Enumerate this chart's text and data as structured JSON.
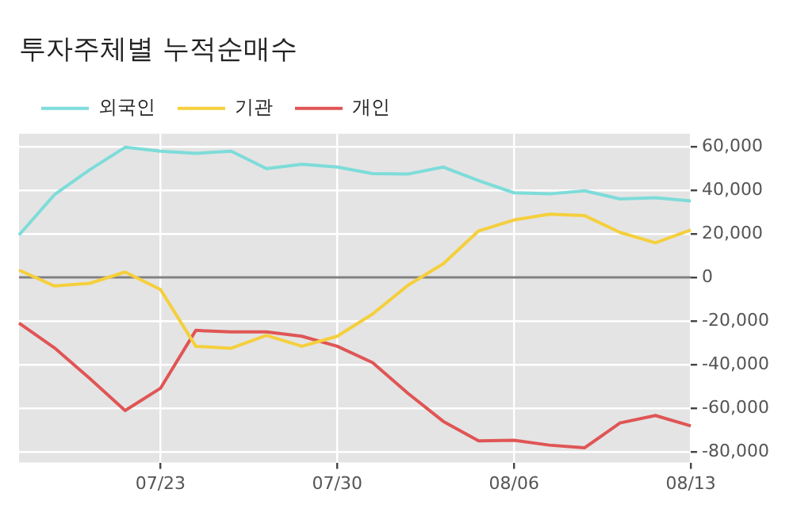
{
  "chart_data": {
    "type": "line",
    "title": "투자주체별 누적순매수",
    "categories": [
      null,
      null,
      null,
      null,
      "07/23",
      null,
      null,
      null,
      null,
      "07/30",
      null,
      null,
      null,
      null,
      "08/06",
      null,
      null,
      null,
      null,
      "08/13"
    ],
    "series": [
      {
        "name": "외국인",
        "color": "#7ddcd9",
        "values": [
          19500,
          38000,
          49500,
          59800,
          58000,
          57000,
          58000,
          50000,
          52000,
          50700,
          47700,
          47500,
          50700,
          44500,
          38900,
          38400,
          39800,
          36100,
          36600,
          35200
        ]
      },
      {
        "name": "기관",
        "color": "#f5cf3c",
        "values": [
          3400,
          -3900,
          -2700,
          2500,
          -5500,
          -31600,
          -32500,
          -26600,
          -31600,
          -27000,
          -16800,
          -3600,
          6300,
          21400,
          26400,
          29100,
          28400,
          20700,
          15900,
          21800
        ]
      },
      {
        "name": "개인",
        "color": "#e05555",
        "values": [
          -20900,
          -32300,
          -46400,
          -61100,
          -50900,
          -24300,
          -25000,
          -25000,
          -27000,
          -31600,
          -39100,
          -53200,
          -66100,
          -75000,
          -74800,
          -77000,
          -78200,
          -66800,
          -63400,
          -68200
        ]
      }
    ],
    "ylim": [
      -85000,
      66000
    ],
    "yticks": [
      {
        "value": -80000,
        "label": "-80,000"
      },
      {
        "value": -60000,
        "label": "-60,000"
      },
      {
        "value": -40000,
        "label": "-40,000"
      },
      {
        "value": -20000,
        "label": "-20,000"
      },
      {
        "value": 0,
        "label": "0"
      },
      {
        "value": 20000,
        "label": "20,000"
      },
      {
        "value": 40000,
        "label": "40,000"
      },
      {
        "value": 60000,
        "label": "60,000"
      }
    ],
    "ref_lines": [
      {
        "axis": "y",
        "value": 0,
        "color": "#808080"
      }
    ],
    "grid": true,
    "legend": "top left",
    "marker": "none",
    "line_style": "solid"
  }
}
